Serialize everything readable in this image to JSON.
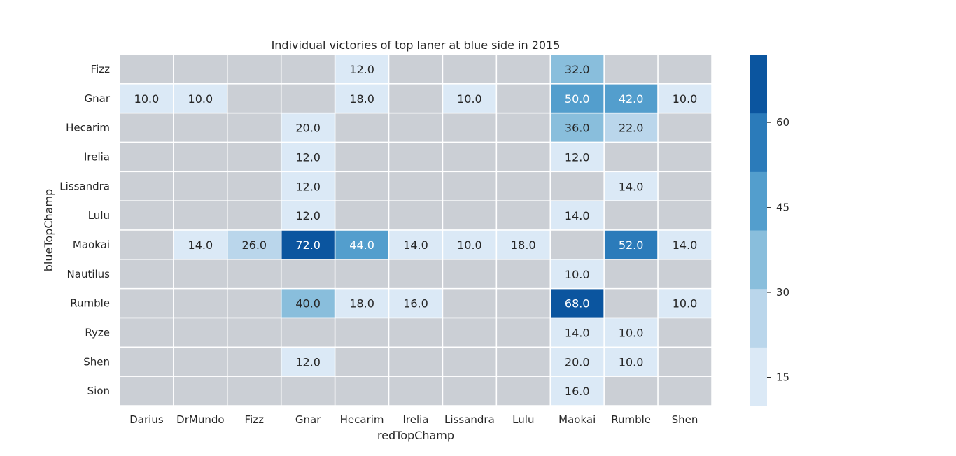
{
  "chart_data": {
    "type": "heatmap",
    "title": "Individual victories of top laner at blue side in 2015",
    "xlabel": "redTopChamp",
    "ylabel": "blueTopChamp",
    "x_categories": [
      "Darius",
      "DrMundo",
      "Fizz",
      "Gnar",
      "Hecarim",
      "Irelia",
      "Lissandra",
      "Lulu",
      "Maokai",
      "Rumble",
      "Shen"
    ],
    "y_categories": [
      "Fizz",
      "Gnar",
      "Hecarim",
      "Irelia",
      "Lissandra",
      "Lulu",
      "Maokai",
      "Nautilus",
      "Rumble",
      "Ryze",
      "Shen",
      "Sion"
    ],
    "values": [
      [
        null,
        null,
        null,
        null,
        12.0,
        null,
        null,
        null,
        32.0,
        null,
        null
      ],
      [
        10.0,
        10.0,
        null,
        null,
        18.0,
        null,
        10.0,
        null,
        50.0,
        42.0,
        10.0
      ],
      [
        null,
        null,
        null,
        20.0,
        null,
        null,
        null,
        null,
        36.0,
        22.0,
        null
      ],
      [
        null,
        null,
        null,
        12.0,
        null,
        null,
        null,
        null,
        12.0,
        null,
        null
      ],
      [
        null,
        null,
        null,
        12.0,
        null,
        null,
        null,
        null,
        null,
        14.0,
        null
      ],
      [
        null,
        null,
        null,
        12.0,
        null,
        null,
        null,
        null,
        14.0,
        null,
        null
      ],
      [
        null,
        14.0,
        26.0,
        72.0,
        44.0,
        14.0,
        10.0,
        18.0,
        null,
        52.0,
        14.0
      ],
      [
        null,
        null,
        null,
        null,
        null,
        null,
        null,
        null,
        10.0,
        null,
        null
      ],
      [
        null,
        null,
        null,
        40.0,
        18.0,
        16.0,
        null,
        null,
        68.0,
        null,
        10.0
      ],
      [
        null,
        null,
        null,
        null,
        null,
        null,
        null,
        null,
        14.0,
        10.0,
        null
      ],
      [
        null,
        null,
        null,
        12.0,
        null,
        null,
        null,
        null,
        20.0,
        10.0,
        null
      ],
      [
        null,
        null,
        null,
        null,
        null,
        null,
        null,
        null,
        16.0,
        null,
        null
      ]
    ],
    "value_labels": [
      [
        null,
        null,
        null,
        null,
        "12.0",
        null,
        null,
        null,
        "32.0",
        null,
        null
      ],
      [
        "10.0",
        "10.0",
        null,
        null,
        "18.0",
        null,
        "10.0",
        null,
        "50.0",
        "42.0",
        "10.0"
      ],
      [
        null,
        null,
        null,
        "20.0",
        null,
        null,
        null,
        null,
        "36.0",
        "22.0",
        null
      ],
      [
        null,
        null,
        null,
        "12.0",
        null,
        null,
        null,
        null,
        "12.0",
        null,
        null
      ],
      [
        null,
        null,
        null,
        "12.0",
        null,
        null,
        null,
        null,
        null,
        "14.0",
        null
      ],
      [
        null,
        null,
        null,
        "12.0",
        null,
        null,
        null,
        null,
        "14.0",
        null,
        null
      ],
      [
        null,
        "14.0",
        "26.0",
        "72.0",
        "44.0",
        "14.0",
        "10.0",
        "18.0",
        null,
        "52.0",
        "14.0"
      ],
      [
        null,
        null,
        null,
        null,
        null,
        null,
        null,
        null,
        "10.0",
        null,
        null
      ],
      [
        null,
        null,
        null,
        "40.0",
        "18.0",
        "16.0",
        null,
        null,
        "68.0",
        null,
        "10.0"
      ],
      [
        null,
        null,
        null,
        null,
        null,
        null,
        null,
        null,
        "14.0",
        "10.0",
        null
      ],
      [
        null,
        null,
        null,
        "12.0",
        null,
        null,
        null,
        null,
        "20.0",
        "10.0",
        null
      ],
      [
        null,
        null,
        null,
        null,
        null,
        null,
        null,
        null,
        "16.0",
        null,
        null
      ]
    ],
    "missing_color": "#cbcfd5",
    "colorbar": {
      "vmin": 10,
      "vmax": 72,
      "bins": 6,
      "colors": [
        "#dbe9f6",
        "#bad6eb",
        "#89bedc",
        "#539ecd",
        "#2b7bba",
        "#0b559f"
      ],
      "ticks": [
        15,
        30,
        45,
        60
      ],
      "tick_labels": [
        "15",
        "30",
        "45",
        "60"
      ]
    },
    "grid": false
  }
}
